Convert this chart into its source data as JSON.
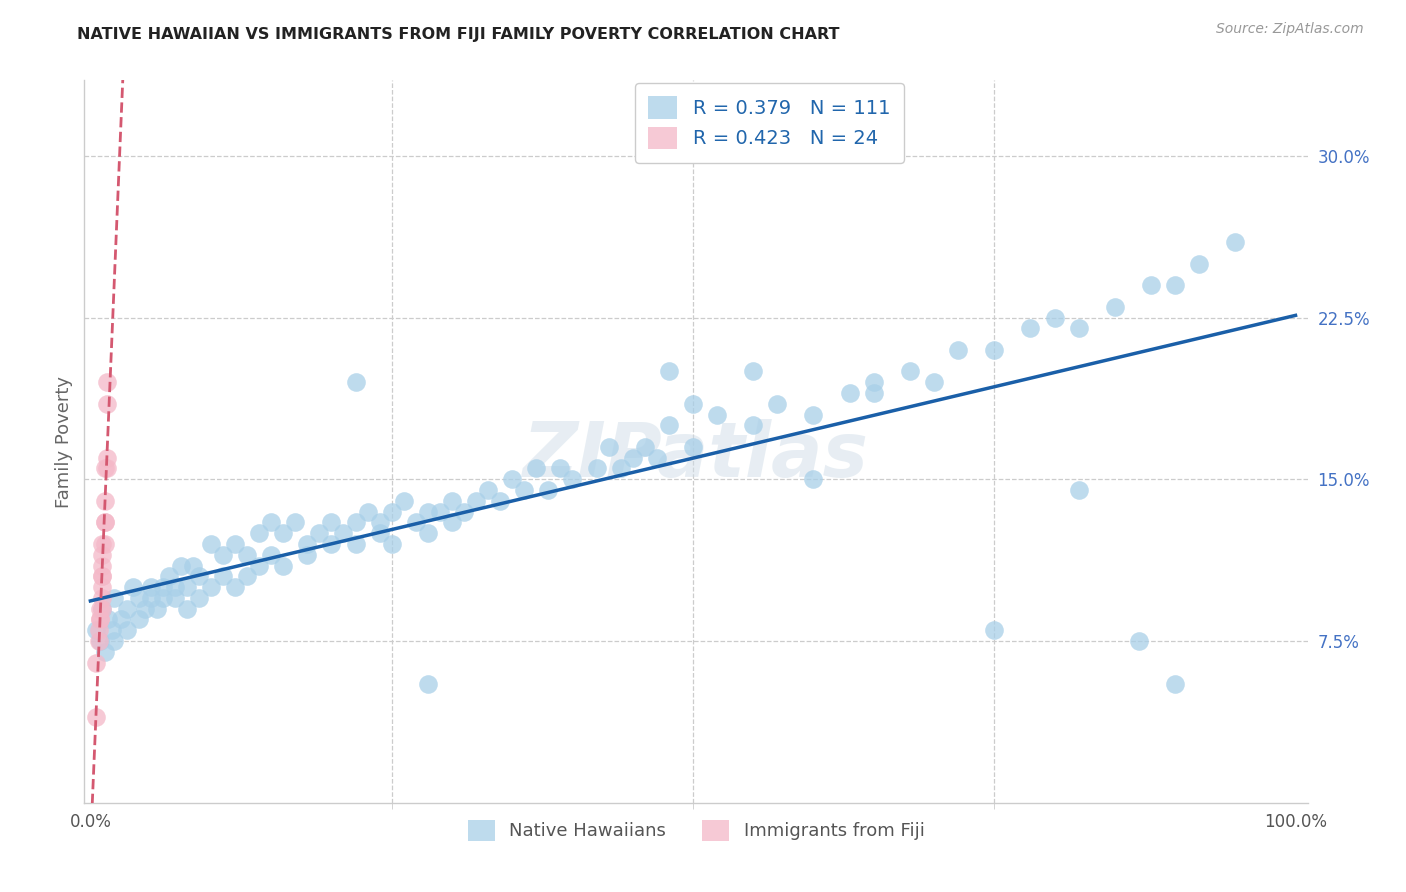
{
  "title": "NATIVE HAWAIIAN VS IMMIGRANTS FROM FIJI FAMILY POVERTY CORRELATION CHART",
  "source": "Source: ZipAtlas.com",
  "ylabel": "Family Poverty",
  "ytick_vals": [
    0.075,
    0.15,
    0.225,
    0.3
  ],
  "ytick_labels": [
    "7.5%",
    "15.0%",
    "22.5%",
    "30.0%"
  ],
  "xlim": [
    -0.005,
    1.01
  ],
  "ylim": [
    0.0,
    0.335
  ],
  "blue_color": "#a8cfe8",
  "pink_color": "#f4b8c8",
  "blue_line_color": "#1a5fa8",
  "pink_line_color": "#d45870",
  "R_blue": 0.379,
  "N_blue": 111,
  "R_pink": 0.423,
  "N_pink": 24,
  "legend_native": "Native Hawaiians",
  "legend_fiji": "Immigrants from Fiji",
  "grid_color": "#cccccc",
  "watermark_color": "#d0dde8",
  "blue_x": [
    0.005,
    0.008,
    0.01,
    0.012,
    0.015,
    0.018,
    0.02,
    0.02,
    0.025,
    0.03,
    0.03,
    0.035,
    0.04,
    0.04,
    0.045,
    0.05,
    0.05,
    0.055,
    0.06,
    0.06,
    0.065,
    0.07,
    0.07,
    0.075,
    0.08,
    0.08,
    0.085,
    0.09,
    0.09,
    0.1,
    0.1,
    0.11,
    0.11,
    0.12,
    0.12,
    0.13,
    0.13,
    0.14,
    0.14,
    0.15,
    0.15,
    0.16,
    0.16,
    0.17,
    0.18,
    0.18,
    0.19,
    0.2,
    0.2,
    0.21,
    0.22,
    0.22,
    0.23,
    0.24,
    0.24,
    0.25,
    0.25,
    0.26,
    0.27,
    0.28,
    0.28,
    0.29,
    0.3,
    0.3,
    0.31,
    0.32,
    0.33,
    0.34,
    0.35,
    0.36,
    0.37,
    0.38,
    0.39,
    0.4,
    0.42,
    0.43,
    0.44,
    0.45,
    0.46,
    0.47,
    0.48,
    0.5,
    0.52,
    0.55,
    0.57,
    0.6,
    0.63,
    0.65,
    0.68,
    0.7,
    0.72,
    0.75,
    0.78,
    0.8,
    0.82,
    0.85,
    0.88,
    0.9,
    0.92,
    0.95,
    0.22,
    0.28,
    0.48,
    0.5,
    0.55,
    0.6,
    0.65,
    0.75,
    0.82,
    0.87,
    0.9
  ],
  "blue_y": [
    0.08,
    0.075,
    0.09,
    0.07,
    0.085,
    0.08,
    0.095,
    0.075,
    0.085,
    0.09,
    0.08,
    0.1,
    0.085,
    0.095,
    0.09,
    0.1,
    0.095,
    0.09,
    0.1,
    0.095,
    0.105,
    0.1,
    0.095,
    0.11,
    0.1,
    0.09,
    0.11,
    0.105,
    0.095,
    0.12,
    0.1,
    0.115,
    0.105,
    0.12,
    0.1,
    0.115,
    0.105,
    0.125,
    0.11,
    0.13,
    0.115,
    0.125,
    0.11,
    0.13,
    0.12,
    0.115,
    0.125,
    0.12,
    0.13,
    0.125,
    0.13,
    0.12,
    0.135,
    0.125,
    0.13,
    0.135,
    0.12,
    0.14,
    0.13,
    0.135,
    0.125,
    0.135,
    0.14,
    0.13,
    0.135,
    0.14,
    0.145,
    0.14,
    0.15,
    0.145,
    0.155,
    0.145,
    0.155,
    0.15,
    0.155,
    0.165,
    0.155,
    0.16,
    0.165,
    0.16,
    0.175,
    0.165,
    0.18,
    0.175,
    0.185,
    0.18,
    0.19,
    0.195,
    0.2,
    0.195,
    0.21,
    0.21,
    0.22,
    0.225,
    0.22,
    0.23,
    0.24,
    0.24,
    0.25,
    0.26,
    0.195,
    0.055,
    0.2,
    0.185,
    0.2,
    0.15,
    0.19,
    0.08,
    0.145,
    0.075,
    0.055
  ],
  "pink_x": [
    0.005,
    0.005,
    0.007,
    0.007,
    0.008,
    0.008,
    0.008,
    0.01,
    0.01,
    0.01,
    0.01,
    0.01,
    0.01,
    0.01,
    0.01,
    0.012,
    0.012,
    0.012,
    0.012,
    0.012,
    0.014,
    0.014,
    0.014,
    0.014
  ],
  "pink_y": [
    0.04,
    0.065,
    0.075,
    0.08,
    0.085,
    0.085,
    0.09,
    0.09,
    0.095,
    0.1,
    0.105,
    0.105,
    0.11,
    0.115,
    0.12,
    0.12,
    0.13,
    0.13,
    0.14,
    0.155,
    0.155,
    0.16,
    0.185,
    0.195
  ]
}
